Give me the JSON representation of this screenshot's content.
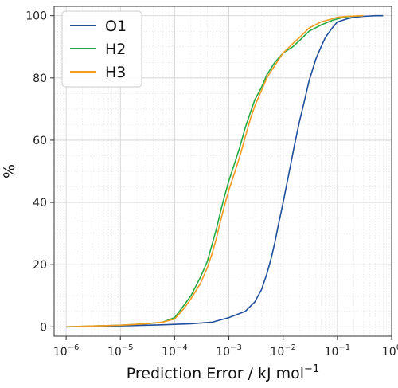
{
  "chart_data": {
    "type": "line",
    "title": "",
    "xlabel": "Prediction Error / kJ mol",
    "xlabel_sup": "−1",
    "ylabel": "%",
    "xscale": "log",
    "xlim": [
      6e-07,
      1.0
    ],
    "ylim": [
      -3,
      103
    ],
    "x_ticks": [
      {
        "value": 1e-06,
        "base": "10",
        "exp": "−6"
      },
      {
        "value": 1e-05,
        "base": "10",
        "exp": "−5"
      },
      {
        "value": 0.0001,
        "base": "10",
        "exp": "−4"
      },
      {
        "value": 0.001,
        "base": "10",
        "exp": "−3"
      },
      {
        "value": 0.01,
        "base": "10",
        "exp": "−2"
      },
      {
        "value": 0.1,
        "base": "10",
        "exp": "−1"
      },
      {
        "value": 1,
        "base": "10",
        "exp": "0"
      }
    ],
    "y_ticks": [
      0,
      20,
      40,
      60,
      80,
      100
    ],
    "grid": true,
    "legend_position": "top-left",
    "series": [
      {
        "name": "O1",
        "color": "#1f4e9c",
        "x": [
          1e-06,
          1e-05,
          5e-05,
          0.0001,
          0.0002,
          0.0005,
          0.001,
          0.002,
          0.003,
          0.004,
          0.005,
          0.006,
          0.007,
          0.008,
          0.01,
          0.013,
          0.016,
          0.02,
          0.025,
          0.03,
          0.04,
          0.05,
          0.06,
          0.08,
          0.1,
          0.15,
          0.2,
          0.3,
          0.5,
          0.7
        ],
        "y": [
          0,
          0.3,
          0.6,
          0.8,
          1,
          1.5,
          3,
          5,
          8,
          12,
          17,
          22,
          27,
          32,
          40,
          50,
          58,
          66,
          73,
          79,
          86,
          90,
          93,
          96,
          98,
          99,
          99.5,
          99.8,
          100,
          100
        ]
      },
      {
        "name": "H2",
        "color": "#22aa44",
        "x": [
          1e-06,
          1e-05,
          3e-05,
          6e-05,
          0.0001,
          0.00015,
          0.0002,
          0.0003,
          0.0004,
          0.0005,
          0.0006,
          0.0007,
          0.0008,
          0.001,
          0.0013,
          0.0016,
          0.002,
          0.0025,
          0.003,
          0.004,
          0.005,
          0.007,
          0.01,
          0.015,
          0.02,
          0.03,
          0.05,
          0.08,
          0.1,
          0.15,
          0.3
        ],
        "y": [
          0,
          0.5,
          1,
          1.5,
          3,
          7,
          10,
          16,
          21,
          27,
          32,
          37,
          41,
          47,
          53,
          58,
          64,
          69,
          73,
          77,
          81,
          85,
          88,
          90,
          92,
          95,
          97,
          98.5,
          99,
          99.7,
          100
        ]
      },
      {
        "name": "H3",
        "color": "#f59a1f",
        "x": [
          1e-06,
          1e-05,
          3e-05,
          6e-05,
          0.0001,
          0.00015,
          0.0002,
          0.0003,
          0.0004,
          0.0005,
          0.0006,
          0.0007,
          0.0008,
          0.001,
          0.0013,
          0.0016,
          0.002,
          0.0025,
          0.003,
          0.004,
          0.005,
          0.007,
          0.01,
          0.015,
          0.02,
          0.03,
          0.05,
          0.08,
          0.1,
          0.15,
          0.3
        ],
        "y": [
          0,
          0.5,
          1,
          1.5,
          2.5,
          6,
          9,
          14,
          19,
          24,
          29,
          34,
          38,
          44,
          50,
          55,
          61,
          67,
          71,
          76,
          80,
          84,
          88,
          91,
          93,
          96,
          98,
          99,
          99.5,
          99.8,
          100
        ]
      }
    ]
  }
}
